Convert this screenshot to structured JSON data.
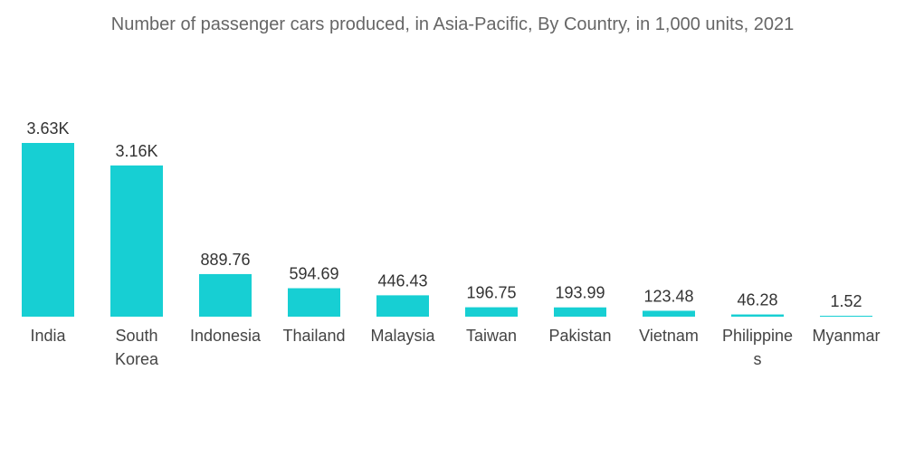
{
  "chart_data": {
    "type": "bar",
    "title": "Number of passenger cars produced, in Asia-Pacific, By Country, in 1,000 units, 2021",
    "xlabel": "",
    "ylabel": "",
    "categories": [
      "India",
      "South Korea",
      "Indonesia",
      "Thailand",
      "Malaysia",
      "Taiwan",
      "Pakistan",
      "Vietnam",
      "Philippines",
      "Myanmar"
    ],
    "category_labels": [
      [
        "India"
      ],
      [
        "South",
        "Korea"
      ],
      [
        "Indonesia"
      ],
      [
        "Thailand"
      ],
      [
        "Malaysia"
      ],
      [
        "Taiwan"
      ],
      [
        "Pakistan"
      ],
      [
        "Vietnam"
      ],
      [
        "Philippine",
        "s"
      ],
      [
        "Myanmar"
      ]
    ],
    "values": [
      3630,
      3160,
      889.76,
      594.69,
      446.43,
      196.75,
      193.99,
      123.48,
      46.28,
      1.52
    ],
    "value_labels": [
      "3.63K",
      "3.16K",
      "889.76",
      "594.69",
      "446.43",
      "196.75",
      "193.99",
      "123.48",
      "46.28",
      "1.52"
    ],
    "bar_color": "#17cfd3",
    "grid": false,
    "legend": "none"
  }
}
